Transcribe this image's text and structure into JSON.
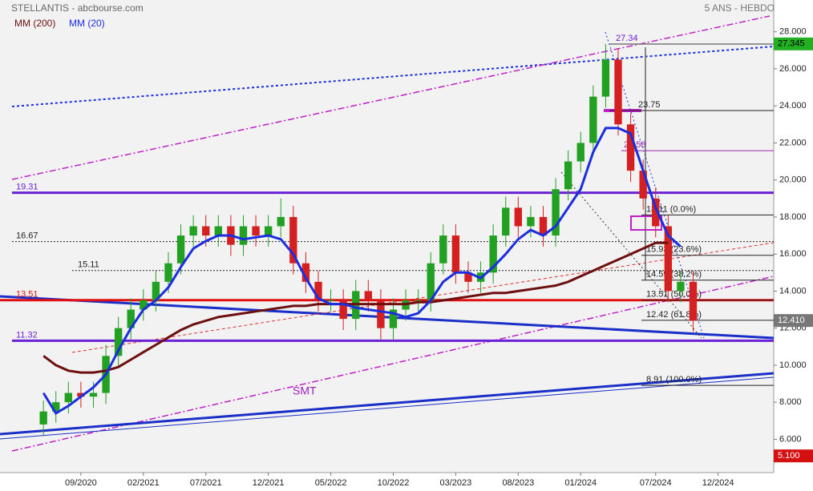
{
  "chart_data": {
    "type": "candlestick",
    "title": "STELLANTIS - abcbourse.com",
    "subtitle": "5 ANS - HEBDO",
    "x": [
      "06/2020",
      "07/2020",
      "08/2020",
      "09/2020",
      "10/2020",
      "11/2020",
      "12/2020",
      "01/2021",
      "02/2021",
      "03/2021",
      "04/2021",
      "05/2021",
      "06/2021",
      "07/2021",
      "08/2021",
      "09/2021",
      "10/2021",
      "11/2021",
      "12/2021",
      "01/2022",
      "02/2022",
      "03/2022",
      "04/2022",
      "05/2022",
      "06/2022",
      "07/2022",
      "08/2022",
      "09/2022",
      "10/2022",
      "11/2022",
      "12/2022",
      "01/2023",
      "02/2023",
      "03/2023",
      "04/2023",
      "05/2023",
      "06/2023",
      "07/2023",
      "08/2023",
      "09/2023",
      "10/2023",
      "11/2023",
      "12/2023",
      "01/2024",
      "02/2024",
      "03/2024",
      "04/2024",
      "05/2024",
      "06/2024",
      "07/2024",
      "08/2024",
      "09/2024",
      "10/2024"
    ],
    "open": [
      6.8,
      7.5,
      8,
      8.5,
      8.3,
      8.5,
      10.5,
      12,
      13,
      13.5,
      14.5,
      15.5,
      17,
      17.5,
      17,
      17.5,
      16.5,
      17.5,
      17,
      17.5,
      18,
      15.5,
      14.5,
      13.5,
      13.5,
      12.5,
      14,
      13.5,
      12,
      13,
      13.5,
      13.5,
      15.5,
      17,
      15,
      14.5,
      15,
      17,
      18.5,
      17.5,
      18,
      17,
      19.5,
      21,
      22,
      24.5,
      26.5,
      23,
      20.5,
      19,
      17.5,
      14,
      14.5
    ],
    "high": [
      8.1,
      8.6,
      9.1,
      9.1,
      9.1,
      11.1,
      12.6,
      13.6,
      14.1,
      15.1,
      16.1,
      17.6,
      18.1,
      18.1,
      18.1,
      18.1,
      18.1,
      18.1,
      18.1,
      19.0,
      18.6,
      16.1,
      15.1,
      14.1,
      14.1,
      14.6,
      14.6,
      14.1,
      13.6,
      14.1,
      14.1,
      16.1,
      17.6,
      17.6,
      15.6,
      15.6,
      17.6,
      19.1,
      19.1,
      18.6,
      18.6,
      20.1,
      21.6,
      22.6,
      25.1,
      27.34,
      27.1,
      23.6,
      21.1,
      19.6,
      18.1,
      15.1,
      15.1
    ],
    "low": [
      6.2,
      6.9,
      7.4,
      7.7,
      7.7,
      7.9,
      9.9,
      11.4,
      12.4,
      12.9,
      13.9,
      14.9,
      16.4,
      16.4,
      16.4,
      15.9,
      15.9,
      16.4,
      16.4,
      16.9,
      14.9,
      13.9,
      12.9,
      12.9,
      11.9,
      11.9,
      12.9,
      11.4,
      11.4,
      12.4,
      12.9,
      12.9,
      14.9,
      14.4,
      13.9,
      13.9,
      14.4,
      16.4,
      16.9,
      16.9,
      16.4,
      16.4,
      18.9,
      20.4,
      21.4,
      23.9,
      22.4,
      19.9,
      18.4,
      16.9,
      13.4,
      13.4,
      11.8
    ],
    "close": [
      7.5,
      8,
      8.5,
      8.3,
      8.5,
      10.5,
      12,
      13,
      13.5,
      14.5,
      15.5,
      17,
      17.5,
      17,
      17.5,
      16.5,
      17.5,
      17,
      17.5,
      18,
      15.5,
      14.5,
      13.5,
      13.5,
      12.5,
      14,
      13.5,
      12,
      13,
      13.5,
      13.5,
      15.5,
      17,
      15,
      14.5,
      15,
      17,
      18.5,
      17.5,
      18,
      17,
      19.5,
      21,
      22,
      24.5,
      26.5,
      23,
      20.5,
      19,
      17.5,
      14,
      14.5,
      12.4
    ],
    "up_color": "#22a022",
    "down_color": "#d42020",
    "series": [
      {
        "name": "MM (200)",
        "color": "#6e0f0f",
        "values": [
          10.5,
          10,
          9.7,
          9.6,
          9.6,
          9.7,
          9.9,
          10.3,
          10.7,
          11.1,
          11.5,
          11.9,
          12.2,
          12.4,
          12.6,
          12.7,
          12.8,
          12.9,
          13,
          13.1,
          13.2,
          13.2,
          13.3,
          13.3,
          13.3,
          13.3,
          13.3,
          13.3,
          13.3,
          13.3,
          13.4,
          13.4,
          13.5,
          13.6,
          13.7,
          13.8,
          13.9,
          13.9,
          14,
          14.1,
          14.2,
          14.3,
          14.5,
          14.8,
          15.1,
          15.4,
          15.7,
          16,
          16.3,
          16.6,
          16.6,
          null,
          null
        ]
      },
      {
        "name": "MM (20)",
        "color": "#1a2ee0",
        "values": [
          8.5,
          7.4,
          7.8,
          8.3,
          8.8,
          9.5,
          10.8,
          12,
          13,
          13.5,
          14.2,
          15.3,
          16.3,
          16.7,
          17,
          17,
          16.8,
          16.9,
          17,
          16.8,
          16,
          14.7,
          13.6,
          13.3,
          13.3,
          13.1,
          13,
          12.9,
          12.8,
          12.6,
          12.8,
          13.5,
          14.5,
          15,
          15,
          14.7,
          15.3,
          16,
          16.8,
          17.3,
          17,
          17.5,
          18.5,
          19.5,
          21.5,
          22.8,
          22.8,
          22.5,
          20.5,
          18.5,
          17,
          16.4,
          null
        ]
      }
    ],
    "levels": [
      {
        "value": 19.31,
        "label": "19.31",
        "color": "#6a22d4"
      },
      {
        "value": 13.51,
        "label": "13.51",
        "color": "#e01010"
      },
      {
        "value": 11.32,
        "label": "11.32",
        "color": "#6a22d4"
      },
      {
        "value": 16.67,
        "label": "16.67",
        "color": "#222222"
      },
      {
        "value": 15.11,
        "label": "15.11",
        "color": "#222222"
      },
      {
        "value": 27.34,
        "label": "27.34",
        "color": "#6a22d4"
      },
      {
        "value": 23.75,
        "label": "23.75",
        "color": "#222222"
      },
      {
        "value": 21.58,
        "label": "21.58",
        "color": "#9a2aa8"
      },
      {
        "value": 18.11,
        "label": "18.11  (0.0%)",
        "color": "#222222"
      },
      {
        "value": 15.93,
        "label": "15.93  (23.6%)",
        "color": "#222222"
      },
      {
        "value": 14.59,
        "label": "14.59  (38.2%)",
        "color": "#222222"
      },
      {
        "value": 13.51,
        "label": "13.51  (50.0%)",
        "color": "#222222"
      },
      {
        "value": 12.42,
        "label": "12.42  (61.8%)",
        "color": "#222222"
      },
      {
        "value": 8.91,
        "label": "8.91  (100.0%)",
        "color": "#222222"
      }
    ],
    "annotation": "SMT",
    "price_tags": [
      {
        "value": 27.345,
        "label": "27.345",
        "color": "#22b022"
      },
      {
        "value": 12.41,
        "label": "12.410",
        "color": "#777777"
      },
      {
        "value": 5.1,
        "label": "5.100",
        "color": "#d41010"
      }
    ],
    "xlim": [
      "03/2020",
      "04/2025"
    ],
    "xticks": [
      "09/2020",
      "02/2021",
      "07/2021",
      "12/2021",
      "05/2022",
      "10/2022",
      "03/2023",
      "08/2023",
      "01/2024",
      "07/2024",
      "12/2024"
    ],
    "ylim": [
      4.2,
      29.5
    ],
    "yticks": [
      {
        "value": 6,
        "label": "6.000"
      },
      {
        "value": 8,
        "label": "8.000"
      },
      {
        "value": 10,
        "label": "10.000"
      },
      {
        "value": 12,
        "label": "12.000"
      },
      {
        "value": 14,
        "label": "14.000"
      },
      {
        "value": 16,
        "label": "16.000"
      },
      {
        "value": 18,
        "label": "18.000"
      },
      {
        "value": 20,
        "label": "20.000"
      },
      {
        "value": 22,
        "label": "22.000"
      },
      {
        "value": 24,
        "label": "24.000"
      },
      {
        "value": 26,
        "label": "26.000"
      },
      {
        "value": 28,
        "label": "28.000"
      }
    ],
    "grid": false
  }
}
